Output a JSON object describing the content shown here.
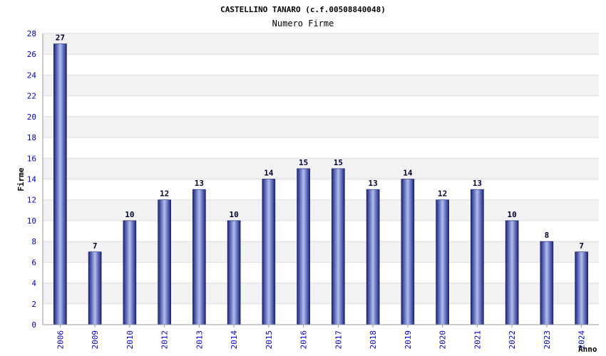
{
  "chart_data": {
    "type": "bar",
    "title": "CASTELLINO TANARO (c.f.00508840048)",
    "subtitle": "Numero Firme",
    "xlabel": "Anno",
    "ylabel": "Firme",
    "categories": [
      "2006",
      "2009",
      "2010",
      "2012",
      "2013",
      "2014",
      "2015",
      "2016",
      "2017",
      "2018",
      "2019",
      "2020",
      "2021",
      "2022",
      "2023",
      "2024"
    ],
    "values": [
      27,
      7,
      10,
      12,
      13,
      10,
      14,
      15,
      15,
      13,
      14,
      12,
      13,
      10,
      8,
      7
    ],
    "ylim": [
      0,
      28
    ],
    "yticks": [
      0,
      2,
      4,
      6,
      8,
      10,
      12,
      14,
      16,
      18,
      20,
      22,
      24,
      26,
      28
    ],
    "grid": "horizontal, alternating bands",
    "colors": {
      "bar_dark": "#1a237e",
      "bar_light": "#b0bdf0",
      "tick_text": "#0000cc",
      "band": "#f2f2f2",
      "grid": "#dddddd"
    }
  }
}
